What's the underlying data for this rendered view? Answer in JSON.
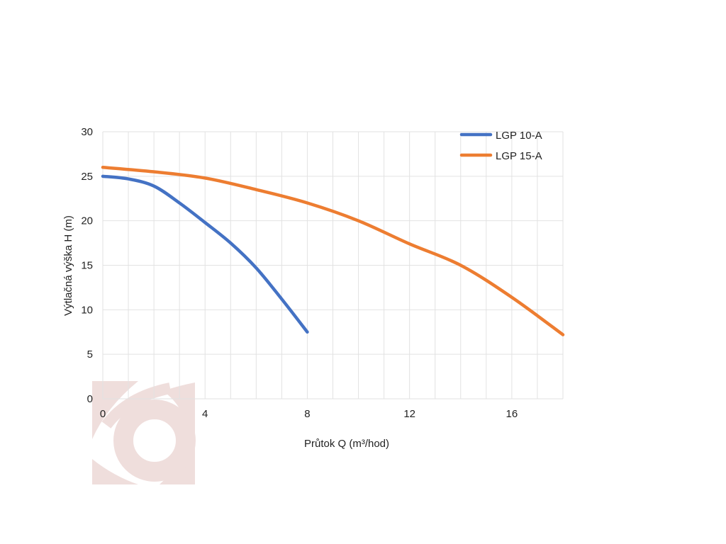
{
  "chart_data": {
    "type": "line",
    "xlabel": "Průtok Q (m³/hod)",
    "ylabel": "Výtlačná výška H (m)",
    "xlim": [
      0,
      18
    ],
    "ylim": [
      0,
      30
    ],
    "x_ticks": [
      0,
      4,
      8,
      12,
      16
    ],
    "y_ticks": [
      0,
      5,
      10,
      15,
      20,
      25,
      30
    ],
    "grid": true,
    "legend": "top-right",
    "series": [
      {
        "name": "LGP 10-A",
        "color": "#4472C4",
        "x": [
          0,
          1,
          2,
          3,
          4,
          5,
          6,
          7,
          8
        ],
        "y": [
          25,
          24.7,
          23.9,
          22,
          19.8,
          17.5,
          14.7,
          11.2,
          7.5
        ]
      },
      {
        "name": "LGP 15-A",
        "color": "#ED7D31",
        "x": [
          0,
          2,
          4,
          6,
          8,
          10,
          12,
          14,
          16,
          18
        ],
        "y": [
          26,
          25.5,
          24.8,
          23.5,
          22,
          20,
          17.4,
          15,
          11.4,
          7.2
        ]
      }
    ]
  },
  "watermark": {
    "color": "#C98A86",
    "icon": "logo-watermark-icon"
  }
}
